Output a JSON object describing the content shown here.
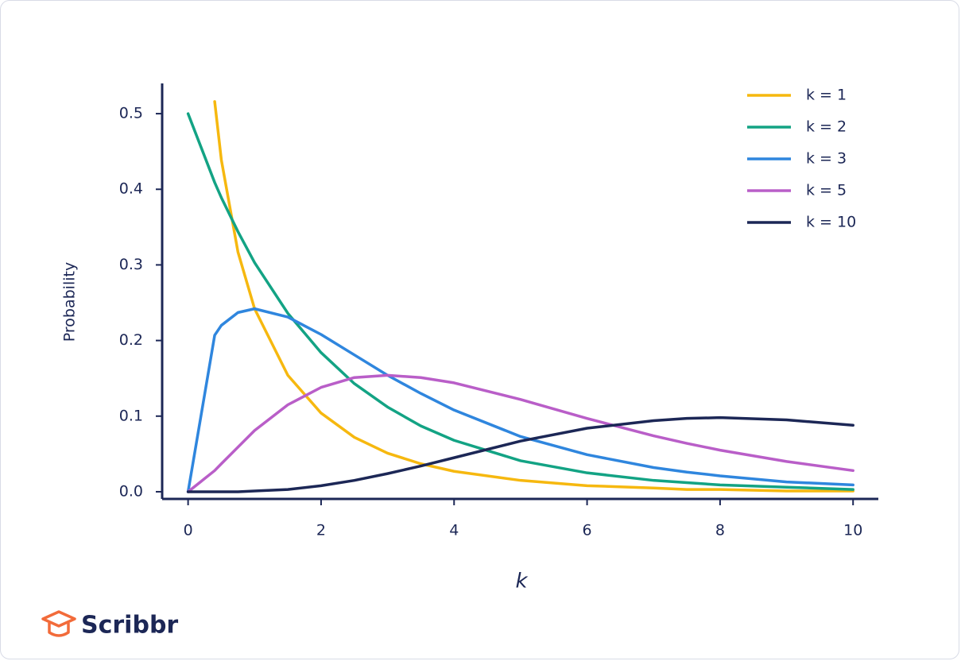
{
  "chart_data": {
    "type": "line",
    "xlabel": "k",
    "ylabel": "Probability",
    "x": [
      0,
      0.4,
      0.5,
      0.75,
      1,
      1.5,
      2,
      2.5,
      3,
      3.5,
      4,
      5,
      6,
      7,
      7.5,
      8,
      9,
      10
    ],
    "series": [
      {
        "name": "k = 1",
        "color": "#f6b80f",
        "values": [
          null,
          0.516,
          0.439,
          0.317,
          0.242,
          0.154,
          0.104,
          0.072,
          0.051,
          0.037,
          0.027,
          0.015,
          0.008,
          0.005,
          0.003,
          0.003,
          0.001,
          0.001
        ]
      },
      {
        "name": "k = 2",
        "color": "#13a384",
        "values": [
          0.5,
          0.409,
          0.389,
          0.344,
          0.303,
          0.236,
          0.184,
          0.143,
          0.112,
          0.087,
          0.068,
          0.041,
          0.025,
          0.015,
          0.012,
          0.009,
          0.006,
          0.003
        ]
      },
      {
        "name": "k = 3",
        "color": "#2f86de",
        "values": [
          0,
          0.207,
          0.22,
          0.237,
          0.242,
          0.231,
          0.208,
          0.181,
          0.154,
          0.13,
          0.108,
          0.073,
          0.049,
          0.032,
          0.026,
          0.021,
          0.013,
          0.009
        ]
      },
      {
        "name": "k = 5",
        "color": "#b95ec8",
        "values": [
          0,
          0.028,
          0.037,
          0.059,
          0.081,
          0.115,
          0.138,
          0.151,
          0.154,
          0.151,
          0.144,
          0.122,
          0.097,
          0.074,
          0.064,
          0.055,
          0.04,
          0.028
        ]
      },
      {
        "name": "k = 10",
        "color": "#1c2756",
        "values": [
          0,
          0,
          0,
          0,
          0.001,
          0.003,
          0.008,
          0.015,
          0.024,
          0.034,
          0.045,
          0.067,
          0.084,
          0.094,
          0.097,
          0.098,
          0.095,
          0.088
        ]
      }
    ],
    "xlim": [
      -0.39,
      10.38
    ],
    "ylim": [
      -0.0095,
      0.54
    ],
    "xticks": [
      0,
      2,
      4,
      6,
      8,
      10
    ],
    "yticks": [
      {
        "value": 0,
        "label": "0.0"
      },
      0.1,
      0.2,
      0.3,
      0.4,
      0.5
    ],
    "legend": "upper right"
  },
  "brand": "Scribbr"
}
